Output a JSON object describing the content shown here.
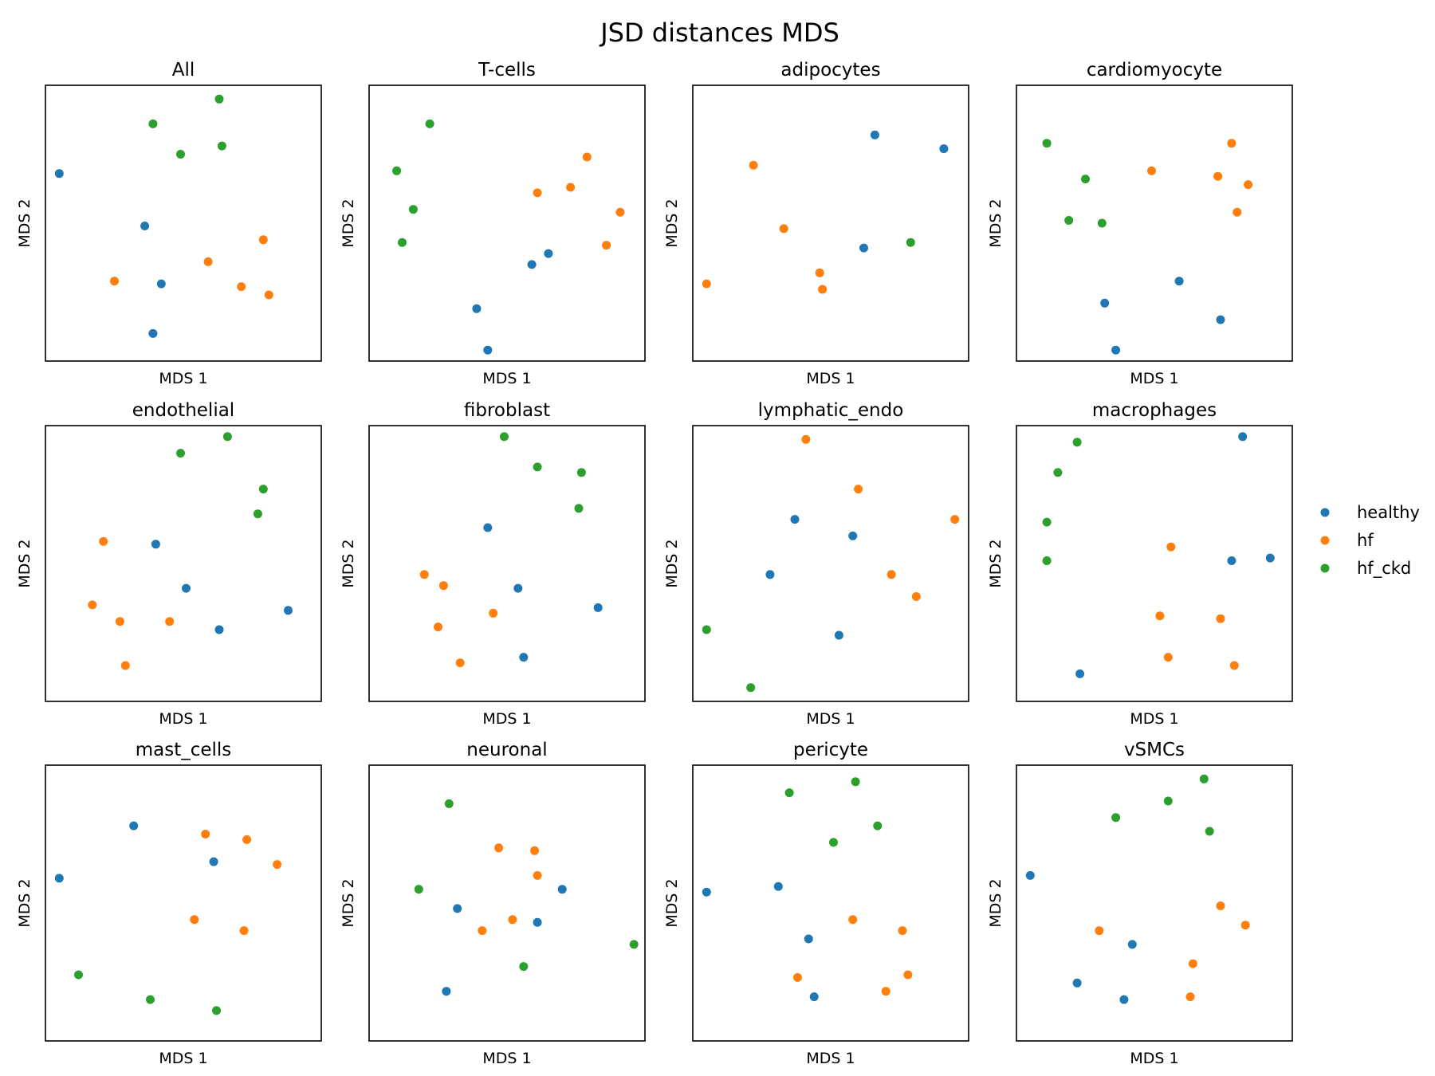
{
  "title": "JSD distances MDS",
  "legend": {
    "placement": "right",
    "entries": [
      {
        "label": "healthy",
        "color": "#1f77b4"
      },
      {
        "label": "hf",
        "color": "#ff7f0e"
      },
      {
        "label": "hf_ckd",
        "color": "#2ca02c"
      }
    ]
  },
  "chart_data": [
    {
      "type": "scatter",
      "title": "All",
      "xlabel": "MDS 1",
      "ylabel": "MDS 2",
      "xlim": [
        0,
        1
      ],
      "ylim": [
        0,
        1
      ],
      "grid": false,
      "series": [
        {
          "name": "healthy",
          "color": "#1f77b4",
          "points": [
            [
              0.05,
              0.68
            ],
            [
              0.36,
              0.49
            ],
            [
              0.42,
              0.28
            ],
            [
              0.39,
              0.1
            ]
          ]
        },
        {
          "name": "hf",
          "color": "#ff7f0e",
          "points": [
            [
              0.25,
              0.29
            ],
            [
              0.59,
              0.36
            ],
            [
              0.79,
              0.44
            ],
            [
              0.71,
              0.27
            ],
            [
              0.81,
              0.24
            ]
          ]
        },
        {
          "name": "hf_ckd",
          "color": "#2ca02c",
          "points": [
            [
              0.63,
              0.95
            ],
            [
              0.39,
              0.86
            ],
            [
              0.49,
              0.75
            ],
            [
              0.64,
              0.78
            ]
          ]
        }
      ]
    },
    {
      "type": "scatter",
      "title": "T-cells",
      "xlabel": "MDS 1",
      "ylabel": "MDS 2",
      "xlim": [
        0,
        1
      ],
      "ylim": [
        0,
        1
      ],
      "grid": false,
      "series": [
        {
          "name": "healthy",
          "color": "#1f77b4",
          "points": [
            [
              0.59,
              0.35
            ],
            [
              0.65,
              0.39
            ],
            [
              0.39,
              0.19
            ],
            [
              0.43,
              0.04
            ]
          ]
        },
        {
          "name": "hf",
          "color": "#ff7f0e",
          "points": [
            [
              0.79,
              0.74
            ],
            [
              0.73,
              0.63
            ],
            [
              0.61,
              0.61
            ],
            [
              0.91,
              0.54
            ],
            [
              0.86,
              0.42
            ]
          ]
        },
        {
          "name": "hf_ckd",
          "color": "#2ca02c",
          "points": [
            [
              0.22,
              0.86
            ],
            [
              0.1,
              0.69
            ],
            [
              0.16,
              0.55
            ],
            [
              0.12,
              0.43
            ]
          ]
        }
      ]
    },
    {
      "type": "scatter",
      "title": "adipocytes",
      "xlabel": "MDS 1",
      "ylabel": "MDS 2",
      "xlim": [
        0,
        1
      ],
      "ylim": [
        0,
        1
      ],
      "grid": false,
      "series": [
        {
          "name": "healthy",
          "color": "#1f77b4",
          "points": [
            [
              0.66,
              0.82
            ],
            [
              0.91,
              0.77
            ],
            [
              0.62,
              0.41
            ]
          ]
        },
        {
          "name": "hf",
          "color": "#ff7f0e",
          "points": [
            [
              0.22,
              0.71
            ],
            [
              0.33,
              0.48
            ],
            [
              0.05,
              0.28
            ],
            [
              0.46,
              0.32
            ],
            [
              0.47,
              0.26
            ]
          ]
        },
        {
          "name": "hf_ckd",
          "color": "#2ca02c",
          "points": [
            [
              0.79,
              0.43
            ]
          ]
        }
      ]
    },
    {
      "type": "scatter",
      "title": "cardiomyocyte",
      "xlabel": "MDS 1",
      "ylabel": "MDS 2",
      "xlim": [
        0,
        1
      ],
      "ylim": [
        0,
        1
      ],
      "grid": false,
      "series": [
        {
          "name": "healthy",
          "color": "#1f77b4",
          "points": [
            [
              0.59,
              0.29
            ],
            [
              0.32,
              0.21
            ],
            [
              0.74,
              0.15
            ],
            [
              0.36,
              0.04
            ]
          ]
        },
        {
          "name": "hf",
          "color": "#ff7f0e",
          "points": [
            [
              0.78,
              0.79
            ],
            [
              0.49,
              0.69
            ],
            [
              0.73,
              0.67
            ],
            [
              0.84,
              0.64
            ],
            [
              0.8,
              0.54
            ]
          ]
        },
        {
          "name": "hf_ckd",
          "color": "#2ca02c",
          "points": [
            [
              0.11,
              0.79
            ],
            [
              0.25,
              0.66
            ],
            [
              0.19,
              0.51
            ],
            [
              0.31,
              0.5
            ]
          ]
        }
      ]
    },
    {
      "type": "scatter",
      "title": "endothelial",
      "xlabel": "MDS 1",
      "ylabel": "MDS 2",
      "xlim": [
        0,
        1
      ],
      "ylim": [
        0,
        1
      ],
      "grid": false,
      "series": [
        {
          "name": "healthy",
          "color": "#1f77b4",
          "points": [
            [
              0.4,
              0.57
            ],
            [
              0.51,
              0.41
            ],
            [
              0.88,
              0.33
            ],
            [
              0.63,
              0.26
            ]
          ]
        },
        {
          "name": "hf",
          "color": "#ff7f0e",
          "points": [
            [
              0.21,
              0.58
            ],
            [
              0.17,
              0.35
            ],
            [
              0.27,
              0.29
            ],
            [
              0.45,
              0.29
            ],
            [
              0.29,
              0.13
            ]
          ]
        },
        {
          "name": "hf_ckd",
          "color": "#2ca02c",
          "points": [
            [
              0.66,
              0.96
            ],
            [
              0.49,
              0.9
            ],
            [
              0.79,
              0.77
            ],
            [
              0.77,
              0.68
            ]
          ]
        }
      ]
    },
    {
      "type": "scatter",
      "title": "fibroblast",
      "xlabel": "MDS 1",
      "ylabel": "MDS 2",
      "xlim": [
        0,
        1
      ],
      "ylim": [
        0,
        1
      ],
      "grid": false,
      "series": [
        {
          "name": "healthy",
          "color": "#1f77b4",
          "points": [
            [
              0.43,
              0.63
            ],
            [
              0.54,
              0.41
            ],
            [
              0.83,
              0.34
            ],
            [
              0.56,
              0.16
            ]
          ]
        },
        {
          "name": "hf",
          "color": "#ff7f0e",
          "points": [
            [
              0.2,
              0.46
            ],
            [
              0.27,
              0.42
            ],
            [
              0.45,
              0.32
            ],
            [
              0.25,
              0.27
            ],
            [
              0.33,
              0.14
            ]
          ]
        },
        {
          "name": "hf_ckd",
          "color": "#2ca02c",
          "points": [
            [
              0.49,
              0.96
            ],
            [
              0.61,
              0.85
            ],
            [
              0.77,
              0.83
            ],
            [
              0.76,
              0.7
            ]
          ]
        }
      ]
    },
    {
      "type": "scatter",
      "title": "lymphatic_endo",
      "xlabel": "MDS 1",
      "ylabel": "MDS 2",
      "xlim": [
        0,
        1
      ],
      "ylim": [
        0,
        1
      ],
      "grid": false,
      "series": [
        {
          "name": "healthy",
          "color": "#1f77b4",
          "points": [
            [
              0.37,
              0.66
            ],
            [
              0.58,
              0.6
            ],
            [
              0.28,
              0.46
            ],
            [
              0.53,
              0.24
            ]
          ]
        },
        {
          "name": "hf",
          "color": "#ff7f0e",
          "points": [
            [
              0.41,
              0.95
            ],
            [
              0.6,
              0.77
            ],
            [
              0.95,
              0.66
            ],
            [
              0.72,
              0.46
            ],
            [
              0.81,
              0.38
            ]
          ]
        },
        {
          "name": "hf_ckd",
          "color": "#2ca02c",
          "points": [
            [
              0.05,
              0.26
            ],
            [
              0.21,
              0.05
            ]
          ]
        }
      ]
    },
    {
      "type": "scatter",
      "title": "macrophages",
      "xlabel": "MDS 1",
      "ylabel": "MDS 2",
      "xlim": [
        0,
        1
      ],
      "ylim": [
        0,
        1
      ],
      "grid": false,
      "series": [
        {
          "name": "healthy",
          "color": "#1f77b4",
          "points": [
            [
              0.82,
              0.96
            ],
            [
              0.78,
              0.51
            ],
            [
              0.92,
              0.52
            ],
            [
              0.23,
              0.1
            ]
          ]
        },
        {
          "name": "hf",
          "color": "#ff7f0e",
          "points": [
            [
              0.56,
              0.56
            ],
            [
              0.52,
              0.31
            ],
            [
              0.74,
              0.3
            ],
            [
              0.55,
              0.16
            ],
            [
              0.79,
              0.13
            ]
          ]
        },
        {
          "name": "hf_ckd",
          "color": "#2ca02c",
          "points": [
            [
              0.22,
              0.94
            ],
            [
              0.15,
              0.83
            ],
            [
              0.11,
              0.65
            ],
            [
              0.11,
              0.51
            ]
          ]
        }
      ]
    },
    {
      "type": "scatter",
      "title": "mast_cells",
      "xlabel": "MDS 1",
      "ylabel": "MDS 2",
      "xlim": [
        0,
        1
      ],
      "ylim": [
        0,
        1
      ],
      "grid": false,
      "series": [
        {
          "name": "healthy",
          "color": "#1f77b4",
          "points": [
            [
              0.32,
              0.78
            ],
            [
              0.61,
              0.65
            ],
            [
              0.05,
              0.59
            ]
          ]
        },
        {
          "name": "hf",
          "color": "#ff7f0e",
          "points": [
            [
              0.58,
              0.75
            ],
            [
              0.73,
              0.73
            ],
            [
              0.84,
              0.64
            ],
            [
              0.54,
              0.44
            ],
            [
              0.72,
              0.4
            ]
          ]
        },
        {
          "name": "hf_ckd",
          "color": "#2ca02c",
          "points": [
            [
              0.12,
              0.24
            ],
            [
              0.38,
              0.15
            ],
            [
              0.62,
              0.11
            ]
          ]
        }
      ]
    },
    {
      "type": "scatter",
      "title": "neuronal",
      "xlabel": "MDS 1",
      "ylabel": "MDS 2",
      "xlim": [
        0,
        1
      ],
      "ylim": [
        0,
        1
      ],
      "grid": false,
      "series": [
        {
          "name": "healthy",
          "color": "#1f77b4",
          "points": [
            [
              0.7,
              0.55
            ],
            [
              0.32,
              0.48
            ],
            [
              0.61,
              0.43
            ],
            [
              0.28,
              0.18
            ]
          ]
        },
        {
          "name": "hf",
          "color": "#ff7f0e",
          "points": [
            [
              0.47,
              0.7
            ],
            [
              0.6,
              0.69
            ],
            [
              0.61,
              0.6
            ],
            [
              0.52,
              0.44
            ],
            [
              0.41,
              0.4
            ]
          ]
        },
        {
          "name": "hf_ckd",
          "color": "#2ca02c",
          "points": [
            [
              0.29,
              0.86
            ],
            [
              0.18,
              0.55
            ],
            [
              0.96,
              0.35
            ],
            [
              0.56,
              0.27
            ]
          ]
        }
      ]
    },
    {
      "type": "scatter",
      "title": "pericyte",
      "xlabel": "MDS 1",
      "ylabel": "MDS 2",
      "xlim": [
        0,
        1
      ],
      "ylim": [
        0,
        1
      ],
      "grid": false,
      "series": [
        {
          "name": "healthy",
          "color": "#1f77b4",
          "points": [
            [
              0.05,
              0.54
            ],
            [
              0.31,
              0.56
            ],
            [
              0.42,
              0.37
            ],
            [
              0.44,
              0.16
            ]
          ]
        },
        {
          "name": "hf",
          "color": "#ff7f0e",
          "points": [
            [
              0.58,
              0.44
            ],
            [
              0.76,
              0.4
            ],
            [
              0.38,
              0.23
            ],
            [
              0.78,
              0.24
            ],
            [
              0.7,
              0.18
            ]
          ]
        },
        {
          "name": "hf_ckd",
          "color": "#2ca02c",
          "points": [
            [
              0.35,
              0.9
            ],
            [
              0.59,
              0.94
            ],
            [
              0.67,
              0.78
            ],
            [
              0.51,
              0.72
            ]
          ]
        }
      ]
    },
    {
      "type": "scatter",
      "title": "vSMCs",
      "xlabel": "MDS 1",
      "ylabel": "MDS 2",
      "xlim": [
        0,
        1
      ],
      "ylim": [
        0,
        1
      ],
      "grid": false,
      "series": [
        {
          "name": "healthy",
          "color": "#1f77b4",
          "points": [
            [
              0.05,
              0.6
            ],
            [
              0.42,
              0.35
            ],
            [
              0.22,
              0.21
            ],
            [
              0.39,
              0.15
            ]
          ]
        },
        {
          "name": "hf",
          "color": "#ff7f0e",
          "points": [
            [
              0.74,
              0.49
            ],
            [
              0.83,
              0.42
            ],
            [
              0.3,
              0.4
            ],
            [
              0.64,
              0.28
            ],
            [
              0.63,
              0.16
            ]
          ]
        },
        {
          "name": "hf_ckd",
          "color": "#2ca02c",
          "points": [
            [
              0.68,
              0.95
            ],
            [
              0.36,
              0.81
            ],
            [
              0.55,
              0.87
            ],
            [
              0.7,
              0.76
            ]
          ]
        }
      ]
    }
  ]
}
